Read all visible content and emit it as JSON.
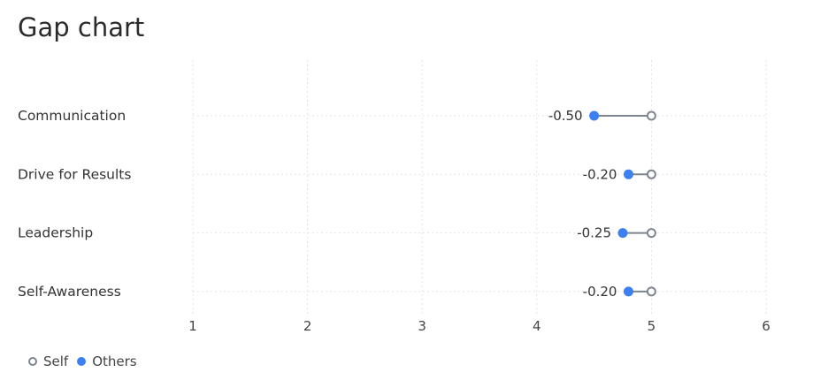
{
  "chart_data": {
    "type": "dumbbell",
    "title": "Gap chart",
    "categories": [
      "Communication",
      "Drive for Results",
      "Leadership",
      "Self-Awareness"
    ],
    "series": [
      {
        "name": "Self",
        "values": [
          5,
          5,
          5,
          5
        ],
        "color": "#7d8590",
        "marker": "hollow-circle"
      },
      {
        "name": "Others",
        "values": [
          4.5,
          4.8,
          4.75,
          4.8
        ],
        "color": "#3b7ff0",
        "marker": "filled-circle"
      }
    ],
    "gap_labels": [
      "-0.50",
      "-0.20",
      "-0.25",
      "-0.20"
    ],
    "xlim": [
      1,
      6
    ],
    "xticks": [
      "1",
      "2",
      "3",
      "4",
      "5",
      "6"
    ],
    "grid": true,
    "legend": "bottom-left",
    "connector_color": "#7d8590"
  }
}
